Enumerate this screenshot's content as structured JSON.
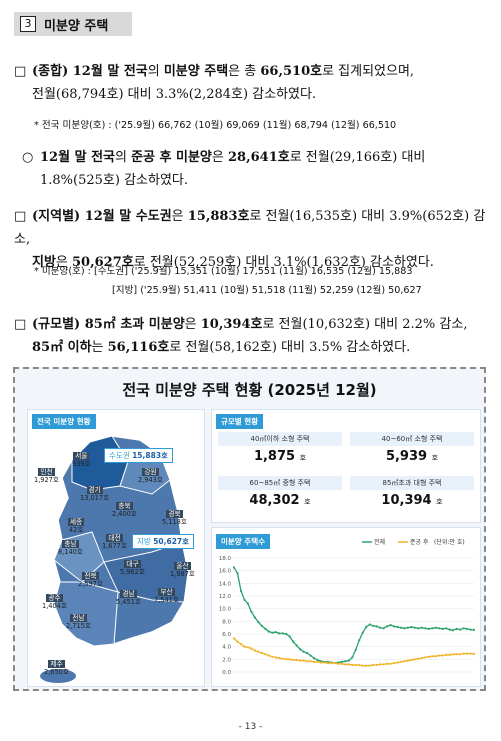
{
  "section": {
    "number": "3",
    "title": "미분양 주택"
  },
  "para1": {
    "mark": "□",
    "p1": "(종합)",
    "p2": " 12월 말 전국",
    "p3": "의 ",
    "p4": "미분양 주택",
    "p5": "은 총 ",
    "p6": "66,510호",
    "p7": "로 집계되었으며,",
    "line2": "전월(68,794호) 대비 3.3%(2,284호) 감소하였다."
  },
  "note1": "* 전국 미분양(호) : ('25.9월) 66,762 (10월) 69,069 (11월) 68,794 (12월) 66,510",
  "para2": {
    "mark": "○",
    "p1": "12월 말 전국",
    "p2": "의 ",
    "p3": "준공 후 미분양",
    "p4": "은 ",
    "p5": "28,641호",
    "p6": "로 전월(29,166호) 대비",
    "line2": "1.8%(525호) 감소하였다."
  },
  "para3": {
    "mark": "□",
    "p1": "(지역별)",
    "p2": " 12월 말 수도권",
    "p3": "은 ",
    "p4": "15,883호",
    "p5": "로 전월(16,535호) 대비 3.9%(652호) 감소,",
    "p6": "지방",
    "p7": "은 ",
    "p8": "50,627호",
    "p9": "로 전월(52,259호) 대비 3.1%(1,632호) 감소하였다."
  },
  "note2": {
    "line1": "* 미분양(호) : [수도권] ('25.9월) 15,351 (10월) 17,551 (11월) 16,535 (12월) 15,883",
    "line2": "[지방] ('25.9월) 51,411 (10월) 51,518 (11월) 52,259 (12월) 50,627"
  },
  "para4": {
    "mark": "□",
    "p1": "(규모별)",
    "p2": " 85㎡ 초과 미분양",
    "p3": "은 ",
    "p4": "10,394호",
    "p5": "로 전월(10,632호) 대비 2.2% 감소,",
    "p6": "85㎡ 이하",
    "p7": "는 ",
    "p8": "56,116호",
    "p9": "로 전월(58,162호) 대비 3.5% 감소하였다."
  },
  "infographic": {
    "title": "전국 미분양 주택 현황 (2025년 12월)",
    "map_tag": "전국 미분양 현황",
    "capital": {
      "label": "수도권",
      "value": "15,883호"
    },
    "provinces": {
      "label": "지방",
      "value": "50,627호"
    },
    "regions": [
      {
        "name": "서울",
        "value": "939호"
      },
      {
        "name": "인천",
        "value": "1,927호"
      },
      {
        "name": "경기",
        "value": "13,017호"
      },
      {
        "name": "강원",
        "value": "2,943호"
      },
      {
        "name": "충북",
        "value": "2,400호"
      },
      {
        "name": "세종",
        "value": "42호"
      },
      {
        "name": "대전",
        "value": "1,677호"
      },
      {
        "name": "충남",
        "value": "8,140호"
      },
      {
        "name": "경북",
        "value": "5,118호"
      },
      {
        "name": "대구",
        "value": "5,962호"
      },
      {
        "name": "전북",
        "value": "2,597호"
      },
      {
        "name": "울산",
        "value": "1,987호"
      },
      {
        "name": "광주",
        "value": "1,404호"
      },
      {
        "name": "경남",
        "value": "5,451호"
      },
      {
        "name": "부산",
        "value": "7,541호"
      },
      {
        "name": "전남",
        "value": "2,715호"
      },
      {
        "name": "제주",
        "value": "2,650호"
      }
    ],
    "size_tag": "규모별 현황",
    "sizes": [
      {
        "label": "40㎡이하 소형 주택",
        "value": "1,875",
        "unit": "호"
      },
      {
        "label": "40~60㎡ 소형 주택",
        "value": "5,939",
        "unit": "호"
      },
      {
        "label": "60~85㎡ 중형 주택",
        "value": "48,302",
        "unit": "호"
      },
      {
        "label": "85㎡초과 대형 주택",
        "value": "10,394",
        "unit": "호"
      }
    ],
    "chart_tag": "미분양 주택수"
  },
  "chart_data": {
    "type": "line",
    "title": "미분양 주택수",
    "legend": [
      "전체",
      "준공 후"
    ],
    "unit_note": "(단위:만 호)",
    "ylim": [
      0,
      18
    ],
    "yticks": [
      "0.0",
      "2.0",
      "4.0",
      "6.0",
      "8.0",
      "10.0",
      "12.0",
      "14.0",
      "16.0",
      "18.0"
    ],
    "colors": {
      "total": "#2aa36b",
      "completed": "#f0b429"
    },
    "series": [
      {
        "name": "전체",
        "values": [
          16.5,
          15.6,
          12.8,
          11.4,
          10.8,
          9.5,
          8.6,
          7.9,
          7.3,
          6.8,
          6.4,
          6.2,
          6.3,
          6.1,
          6.1,
          6.0,
          5.6,
          4.8,
          4.2,
          3.6,
          3.2,
          3.0,
          2.6,
          2.2,
          1.9,
          1.7,
          1.6,
          1.6,
          1.5,
          1.4,
          1.5,
          1.6,
          1.7,
          1.8,
          2.3,
          3.5,
          5.0,
          6.2,
          7.1,
          7.5,
          7.3,
          7.2,
          7.0,
          6.9,
          7.2,
          7.4,
          7.2,
          7.1,
          7.0,
          6.9,
          7.0,
          7.1,
          7.0,
          6.9,
          7.0,
          6.9,
          6.8,
          6.9,
          7.0,
          6.9,
          6.8,
          6.9,
          6.7,
          6.6,
          6.8,
          6.7,
          6.9,
          6.8,
          6.7,
          6.65
        ]
      },
      {
        "name": "준공 후",
        "values": [
          5.3,
          4.8,
          4.4,
          4.0,
          3.9,
          3.7,
          3.4,
          3.2,
          3.0,
          2.8,
          2.6,
          2.4,
          2.3,
          2.2,
          2.1,
          2.0,
          2.0,
          1.9,
          1.9,
          1.8,
          1.8,
          1.7,
          1.7,
          1.6,
          1.6,
          1.5,
          1.5,
          1.4,
          1.4,
          1.4,
          1.3,
          1.3,
          1.2,
          1.2,
          1.1,
          1.1,
          1.1,
          1.0,
          1.0,
          1.0,
          1.1,
          1.1,
          1.2,
          1.2,
          1.3,
          1.3,
          1.4,
          1.5,
          1.6,
          1.7,
          1.8,
          1.9,
          2.0,
          2.1,
          2.2,
          2.3,
          2.4,
          2.5,
          2.5,
          2.6,
          2.6,
          2.7,
          2.7,
          2.8,
          2.8,
          2.8,
          2.9,
          2.9,
          2.9,
          2.86
        ]
      }
    ]
  },
  "page_number": "- 13 -"
}
